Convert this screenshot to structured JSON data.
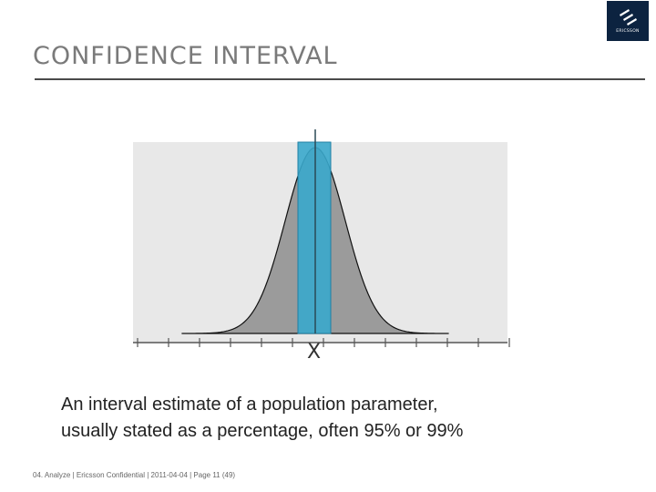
{
  "slide": {
    "title": "Confidence interval",
    "body_lines": [
      "An interval estimate of a population parameter,",
      "usually stated as  a percentage, often 95% or 99%"
    ],
    "footer": "04. Analyze  |  Ericsson Confidential  |  2011-04-04  |  Page  11 (49)"
  },
  "logo": {
    "name": "ericsson-logo",
    "wordmark": "ERICSSON",
    "color": "#0c2340"
  },
  "chart_data": {
    "type": "area",
    "xlabel": "X",
    "colors": {
      "curve_fill": "#9b9b9b",
      "plot_bg": "#e8e8e8",
      "interval": "#3aa8cc"
    }
  }
}
